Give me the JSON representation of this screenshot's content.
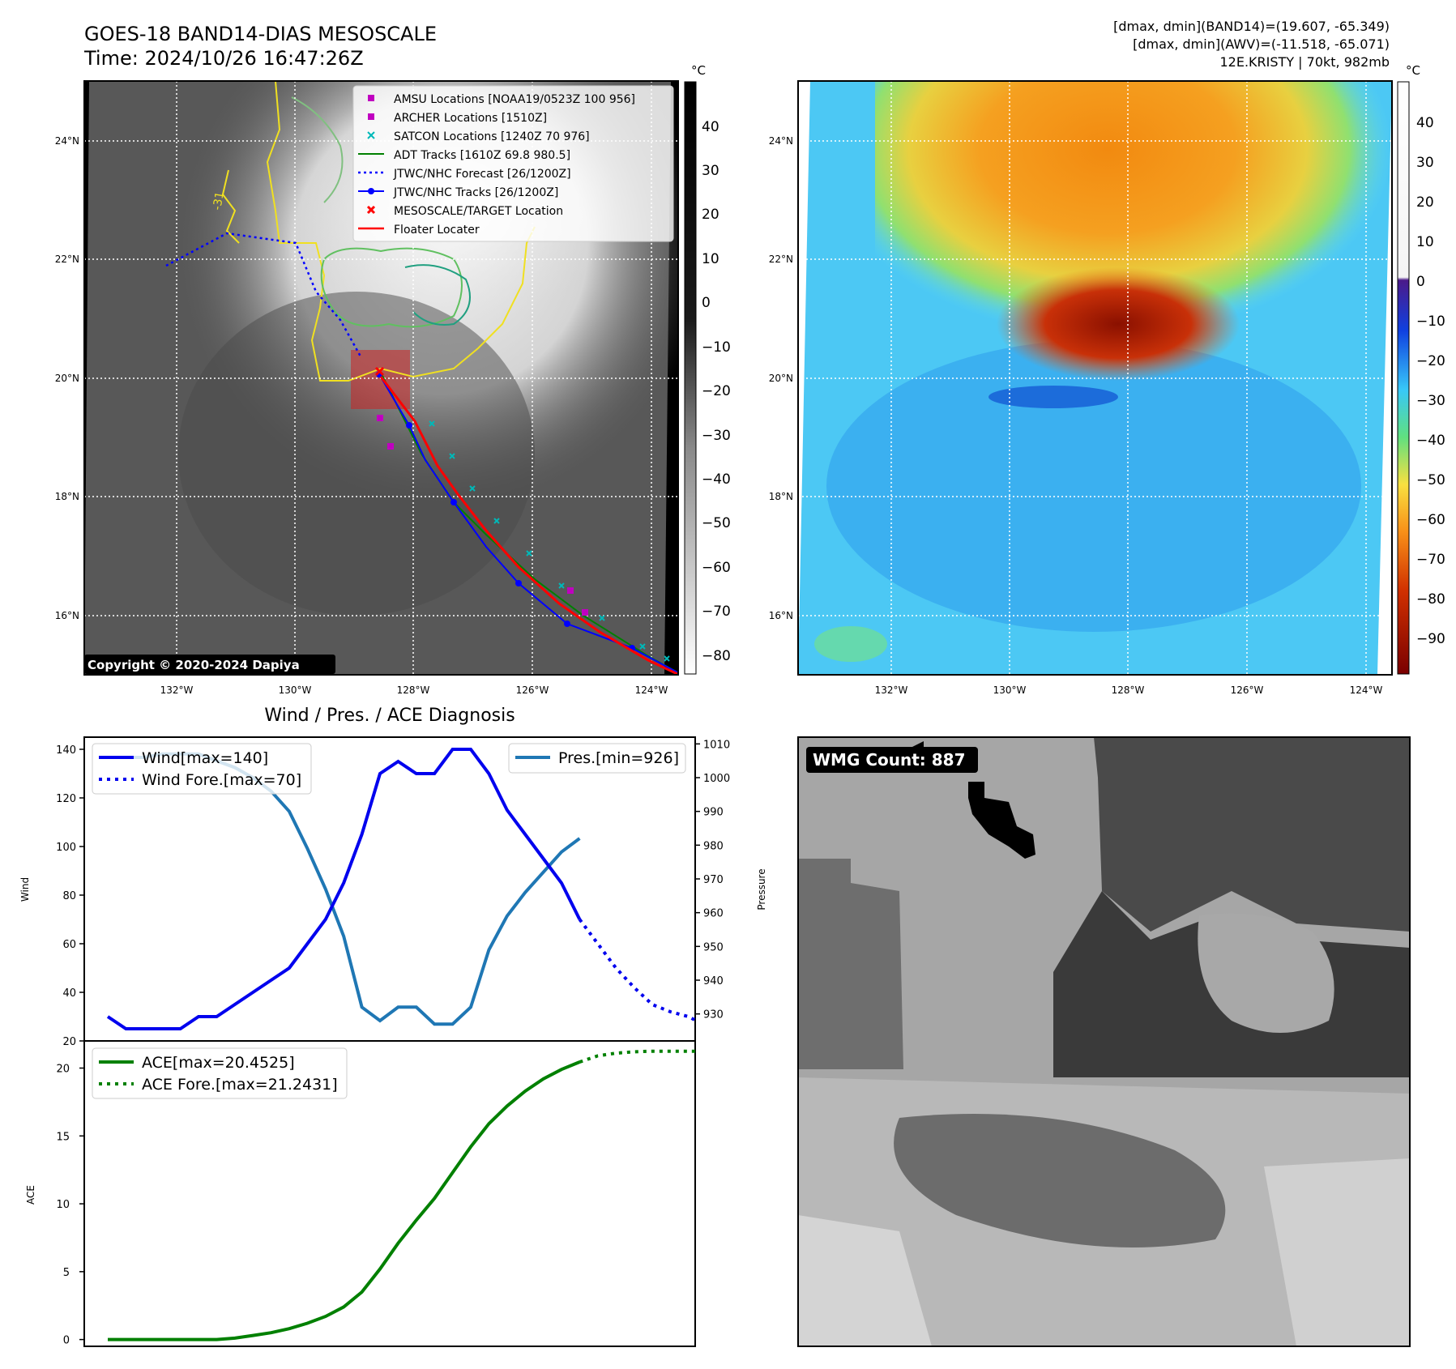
{
  "header": {
    "title_line1": "GOES-18 BAND14-DIAS MESOSCALE",
    "title_line2": "Time: 2024/10/26 16:47:26Z",
    "stats_line1": "[dmax, dmin](BAND14)=(19.607, -65.349)",
    "stats_line2": "[dmax, dmin](AWV)=(-11.518, -65.071)",
    "stats_line3": "12E.KRISTY | 70kt, 982mb"
  },
  "copyright": "Copyright © 2020-2024 Dapiya",
  "map": {
    "lon_labels": [
      "132°W",
      "130°W",
      "128°W",
      "126°W",
      "124°W"
    ],
    "lat_labels": [
      "24°N",
      "22°N",
      "20°N",
      "18°N",
      "16°N"
    ],
    "contour_label": "-31"
  },
  "legend": {
    "items": [
      {
        "label": "AMSU Locations [NOAA19/0523Z 100 956]",
        "color": "#c000c0"
      },
      {
        "label": "ARCHER Locations [1510Z]",
        "color": "#c000c0"
      },
      {
        "label": "SATCON Locations [1240Z 70 976]",
        "color": "#00b8b8"
      },
      {
        "label": "ADT Tracks [1610Z 69.8 980.5]",
        "color": "#008000"
      },
      {
        "label": "JTWC/NHC Forecast [26/1200Z]",
        "color": "#0000ff"
      },
      {
        "label": "JTWC/NHC Tracks [26/1200Z]",
        "color": "#0000ff"
      },
      {
        "label": "MESOSCALE/TARGET Location",
        "color": "#ff0000"
      },
      {
        "label": "Floater Locater",
        "color": "#ff0000"
      }
    ]
  },
  "colorbar_gray": {
    "unit": "°C",
    "ticks": [
      "40",
      "30",
      "20",
      "10",
      "0",
      "−10",
      "−20",
      "−30",
      "−40",
      "−50",
      "−60",
      "−70",
      "−80"
    ]
  },
  "colorbar_awv": {
    "unit": "°C",
    "ticks": [
      "40",
      "30",
      "20",
      "10",
      "0",
      "−10",
      "−20",
      "−30",
      "−40",
      "−50",
      "−60",
      "−70",
      "−80",
      "−90"
    ]
  },
  "wmg": {
    "label": "WMG Count: 887"
  },
  "colors": {
    "wind": "#0000ee",
    "pressure": "#1f77b4",
    "ace": "#008000"
  },
  "chart_data": [
    {
      "type": "line",
      "title": "Wind / Pres. / ACE Diagnosis",
      "ylabel": "Wind",
      "y2label": "Pressure",
      "ylim": [
        20,
        145
      ],
      "y2lim": [
        922,
        1012
      ],
      "y_ticks": [
        20,
        40,
        60,
        80,
        100,
        120,
        140
      ],
      "y2_ticks": [
        930,
        940,
        950,
        960,
        970,
        980,
        990,
        1000,
        1010
      ],
      "legend_left": [
        "Wind[max=140]",
        "Wind Fore.[max=70]"
      ],
      "legend_right": [
        "Pres.[min=926]"
      ],
      "series": [
        {
          "name": "Wind[max=140]",
          "x": [
            0,
            1,
            2,
            3,
            4,
            5,
            6,
            7,
            8,
            9,
            10,
            11,
            12,
            13,
            14,
            15,
            16,
            17,
            18,
            19,
            20,
            21,
            22,
            23,
            24
          ],
          "values": [
            30,
            25,
            25,
            25,
            25,
            30,
            30,
            35,
            40,
            45,
            50,
            60,
            70,
            85,
            105,
            130,
            135,
            130,
            130,
            140,
            140,
            130,
            115,
            105,
            95
          ]
        },
        {
          "name": "Wind (tail)",
          "x": [
            24,
            25,
            26
          ],
          "values": [
            95,
            85,
            70
          ]
        },
        {
          "name": "Wind Fore.[max=70]",
          "x": [
            26,
            27,
            28,
            29,
            30,
            31,
            32,
            33
          ],
          "values": [
            70,
            60,
            50,
            42,
            35,
            32,
            30,
            26
          ]
        },
        {
          "name": "Pres.[min=926]",
          "x": [
            0,
            1,
            2,
            3,
            4,
            5,
            6,
            7,
            8,
            9,
            10,
            11,
            12,
            13,
            14,
            15,
            16,
            17,
            18,
            19,
            20,
            21,
            22,
            23,
            24,
            25,
            26
          ],
          "values": [
            1006,
            1006,
            1006,
            1007,
            1007,
            1007,
            1005,
            1003,
            1000,
            996,
            990,
            979,
            967,
            953,
            932,
            928,
            932,
            932,
            927,
            927,
            932,
            949,
            959,
            966,
            972,
            978,
            982
          ]
        }
      ]
    },
    {
      "type": "line",
      "ylabel": "ACE",
      "ylim": [
        -0.5,
        22
      ],
      "y_ticks": [
        0,
        5,
        10,
        15,
        20
      ],
      "legend": [
        "ACE[max=20.4525]",
        "ACE Fore.[max=21.2431]"
      ],
      "series": [
        {
          "name": "ACE[max=20.4525]",
          "x": [
            0,
            1,
            2,
            3,
            4,
            5,
            6,
            7,
            8,
            9,
            10,
            11,
            12,
            13,
            14,
            15,
            16,
            17,
            18,
            19,
            20,
            21,
            22,
            23,
            24,
            25,
            26
          ],
          "values": [
            0,
            0,
            0,
            0,
            0,
            0,
            0,
            0.1,
            0.3,
            0.5,
            0.8,
            1.2,
            1.7,
            2.4,
            3.5,
            5.2,
            7.1,
            8.8,
            10.4,
            12.3,
            14.2,
            15.9,
            17.2,
            18.3,
            19.2,
            19.9,
            20.45
          ]
        },
        {
          "name": "ACE Fore.[max=21.2431]",
          "x": [
            26,
            27,
            28,
            29,
            30,
            31,
            32,
            33
          ],
          "values": [
            20.45,
            20.9,
            21.1,
            21.2,
            21.24,
            21.24,
            21.24,
            21.24
          ]
        }
      ]
    }
  ]
}
